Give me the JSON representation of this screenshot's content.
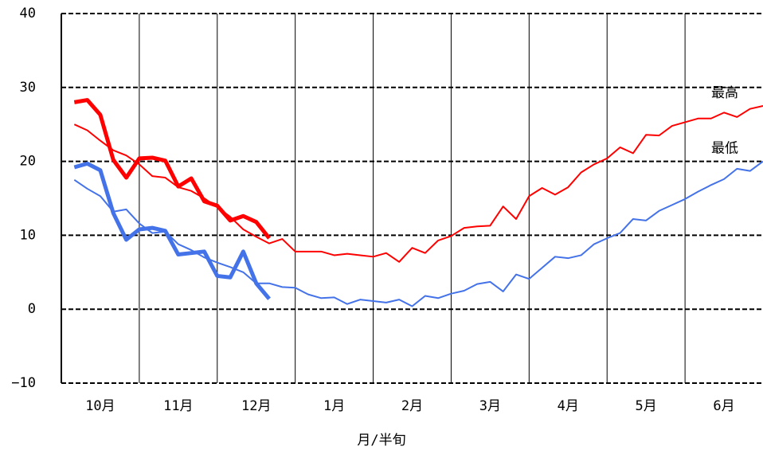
{
  "chart_data": {
    "type": "line",
    "x_label": "月/半旬",
    "xlim": [
      0,
      54
    ],
    "xticks": [
      {
        "value": 3,
        "label": "10月"
      },
      {
        "value": 9,
        "label": "11月"
      },
      {
        "value": 15,
        "label": "12月"
      },
      {
        "value": 21,
        "label": "1月"
      },
      {
        "value": 27,
        "label": "2月"
      },
      {
        "value": 33,
        "label": "3月"
      },
      {
        "value": 39,
        "label": "4月"
      },
      {
        "value": 45,
        "label": "5月"
      },
      {
        "value": 51,
        "label": "6月"
      }
    ],
    "xgrid_lines": [
      6,
      12,
      18,
      24,
      30,
      36,
      42,
      48
    ],
    "ylim": [
      -10,
      40
    ],
    "yticks": [
      {
        "value": -10,
        "label": "−10"
      },
      0,
      10,
      20,
      30,
      40
    ],
    "grid": true,
    "series": [
      {
        "name": "最高",
        "color": "#ff0000",
        "width": 2,
        "x": [
          1,
          2,
          3,
          4,
          5,
          6,
          7,
          8,
          9,
          10,
          11,
          12,
          13,
          14,
          15,
          16,
          17,
          18,
          19,
          20,
          21,
          22,
          23,
          24,
          25,
          26,
          27,
          28,
          29,
          30,
          31,
          32,
          33,
          34,
          35,
          36,
          37,
          38,
          39,
          40,
          41,
          42,
          43,
          44,
          45,
          46,
          47,
          48,
          49,
          50,
          51,
          52,
          53,
          54
        ],
        "values": [
          25,
          24.2,
          22.8,
          21.5,
          20.8,
          19.6,
          18,
          17.8,
          16.5,
          16,
          15,
          13.8,
          12.5,
          10.8,
          9.8,
          8.9,
          9.5,
          7.8,
          7.8,
          7.8,
          7.3,
          7.5,
          7.3,
          7.1,
          7.6,
          6.4,
          8.3,
          7.6,
          9.3,
          9.9,
          11,
          11.2,
          11.3,
          13.9,
          12.2,
          15.3,
          16.4,
          15.5,
          16.5,
          18.5,
          19.6,
          20.4,
          21.9,
          21.1,
          23.6,
          23.5,
          24.8,
          25.3,
          25.8,
          25.8,
          26.6,
          26,
          27.1,
          27.5
        ]
      },
      {
        "name": "最低",
        "color": "#4472e8",
        "width": 2,
        "x": [
          1,
          2,
          3,
          4,
          5,
          6,
          7,
          8,
          9,
          10,
          11,
          12,
          13,
          14,
          15,
          16,
          17,
          18,
          19,
          20,
          21,
          22,
          23,
          24,
          25,
          26,
          27,
          28,
          29,
          30,
          31,
          32,
          33,
          34,
          35,
          36,
          37,
          38,
          39,
          40,
          41,
          42,
          43,
          44,
          45,
          46,
          47,
          48,
          49,
          50,
          51,
          52,
          53,
          54
        ],
        "values": [
          17.5,
          16.3,
          15.3,
          13.2,
          13.5,
          11.6,
          10.3,
          10.5,
          8.8,
          8,
          7,
          6.3,
          5.7,
          5,
          3.5,
          3.5,
          3,
          2.9,
          2,
          1.5,
          1.6,
          0.7,
          1.3,
          1.1,
          0.9,
          1.3,
          0.4,
          1.8,
          1.5,
          2.1,
          2.5,
          3.4,
          3.7,
          2.4,
          4.7,
          4.1,
          5.6,
          7.1,
          6.9,
          7.3,
          8.8,
          9.6,
          10.3,
          12.2,
          12,
          13.3,
          14.1,
          14.9,
          15.9,
          16.8,
          17.6,
          19,
          18.7,
          20
        ]
      },
      {
        "color": "#ff0000",
        "width": 5,
        "x": [
          1,
          2,
          3,
          4,
          5,
          6,
          7,
          8,
          9,
          10,
          11,
          12,
          13,
          14,
          15,
          16
        ],
        "values": [
          28,
          28.3,
          26.3,
          20.2,
          17.8,
          20.4,
          20.5,
          20.1,
          16.6,
          17.7,
          14.6,
          14,
          12,
          12.6,
          11.8,
          9.6
        ]
      },
      {
        "color": "#4472e8",
        "width": 5,
        "x": [
          1,
          2,
          3,
          4,
          5,
          6,
          7,
          8,
          9,
          10,
          11,
          12,
          13,
          14,
          15,
          16
        ],
        "values": [
          19.2,
          19.7,
          18.8,
          13,
          9.4,
          10.8,
          11,
          10.6,
          7.4,
          7.6,
          7.8,
          4.5,
          4.3,
          7.8,
          3.5,
          1.4
        ]
      }
    ]
  }
}
